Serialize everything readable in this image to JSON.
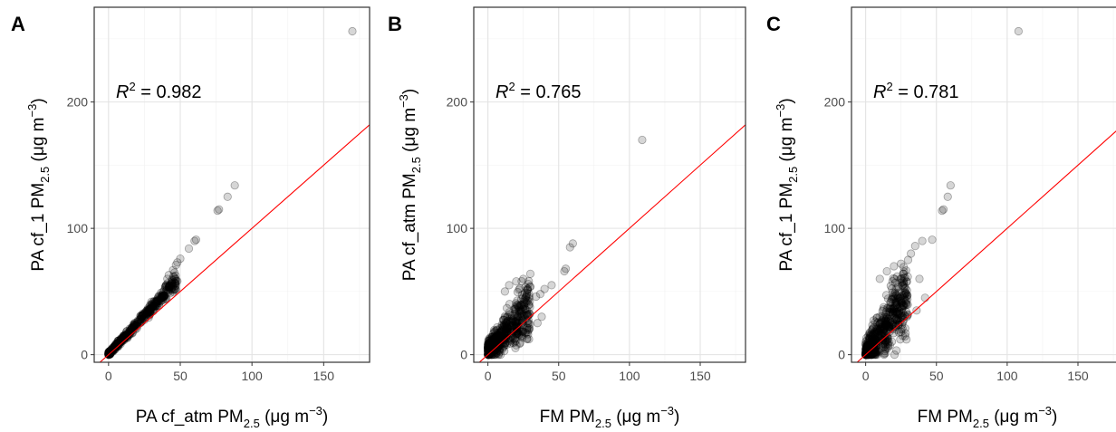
{
  "chart_data": [
    {
      "type": "scatter",
      "panel_label": "A",
      "xlabel": {
        "pre": "PA cf_atm PM",
        "sub": "2.5",
        "post": " (μg m",
        "sup": "−3",
        "end": ")"
      },
      "ylabel": {
        "pre": "PA cf_1 PM",
        "sub": "2.5",
        "post": " (μg m",
        "sup": "−3",
        "end": ")"
      },
      "annotation": {
        "base": "R",
        "sup": "2",
        "value": " = 0.982"
      },
      "xlim": [
        -10,
        182
      ],
      "ylim": [
        -6,
        275
      ],
      "x_ticks": [
        0,
        50,
        100,
        150
      ],
      "y_ticks": [
        0,
        100,
        200
      ],
      "x_tick_labels": [
        "0",
        "50",
        "100",
        "150"
      ],
      "y_tick_labels": [
        "0",
        "100",
        "200"
      ],
      "reference_line": {
        "slope": 1,
        "intercept": 0,
        "color": "#ff0000"
      },
      "cloud": {
        "xmin": 0,
        "xmax": 48,
        "slope": 1.22,
        "intercept": 0.5,
        "spread": 2.2,
        "n": 460
      },
      "outliers": [
        [
          170,
          256
        ],
        [
          88,
          134
        ],
        [
          83,
          125
        ],
        [
          77,
          115
        ],
        [
          76,
          114
        ],
        [
          61,
          91
        ],
        [
          60,
          90
        ],
        [
          56,
          84
        ],
        [
          50,
          76
        ],
        [
          48,
          73
        ],
        [
          47,
          71
        ],
        [
          45,
          67
        ],
        [
          46,
          65
        ],
        [
          42,
          63
        ],
        [
          41,
          60
        ]
      ]
    },
    {
      "type": "scatter",
      "panel_label": "B",
      "xlabel": {
        "pre": "FM PM",
        "sub": "2.5",
        "post": " (μg m",
        "sup": "−3",
        "end": ")"
      },
      "ylabel": {
        "pre": "PA cf_atm PM",
        "sub": "2.5",
        "post": " (μg m",
        "sup": "−3",
        "end": ")"
      },
      "annotation": {
        "base": "R",
        "sup": "2",
        "value": " = 0.765"
      },
      "xlim": [
        -10,
        182
      ],
      "ylim": [
        -6,
        275
      ],
      "x_ticks": [
        0,
        50,
        100,
        150
      ],
      "y_ticks": [
        0,
        100,
        200
      ],
      "x_tick_labels": [
        "0",
        "50",
        "100",
        "150"
      ],
      "y_tick_labels": [
        "0",
        "100",
        "200"
      ],
      "reference_line": {
        "slope": 1,
        "intercept": 0,
        "color": "#ff0000"
      },
      "cloud": {
        "xmin": 0,
        "xmax": 30,
        "slope": 1.15,
        "intercept": 3,
        "spread": 9,
        "n": 560
      },
      "outliers": [
        [
          109,
          170
        ],
        [
          60,
          88
        ],
        [
          58,
          85
        ],
        [
          55,
          68
        ],
        [
          54,
          66
        ],
        [
          45,
          55
        ],
        [
          40,
          52
        ],
        [
          37,
          48
        ],
        [
          34,
          46
        ],
        [
          30,
          64
        ],
        [
          25,
          60
        ],
        [
          20,
          58
        ],
        [
          15,
          55
        ],
        [
          38,
          30
        ],
        [
          35,
          25
        ],
        [
          12,
          50
        ],
        [
          28,
          52
        ]
      ]
    },
    {
      "type": "scatter",
      "panel_label": "C",
      "xlabel": {
        "pre": "FM PM",
        "sub": "2.5",
        "post": " (μg m",
        "sup": "−3",
        "end": ")"
      },
      "ylabel": {
        "pre": "PA cf_1 PM",
        "sub": "2.5",
        "post": " (μg m",
        "sup": "−3",
        "end": ")"
      },
      "annotation": {
        "base": "R",
        "sup": "2",
        "value": " = 0.781"
      },
      "xlim": [
        -10,
        182
      ],
      "ylim": [
        -6,
        275
      ],
      "x_ticks": [
        0,
        50,
        100,
        150
      ],
      "y_ticks": [
        0,
        100,
        200
      ],
      "x_tick_labels": [
        "0",
        "50",
        "100",
        "150"
      ],
      "y_tick_labels": [
        "0",
        "100",
        "200"
      ],
      "reference_line": {
        "slope": 1,
        "intercept": 0,
        "color": "#ff0000"
      },
      "cloud": {
        "xmin": 0,
        "xmax": 30,
        "slope": 1.45,
        "intercept": 2,
        "spread": 12,
        "n": 560
      },
      "outliers": [
        [
          108,
          256
        ],
        [
          60,
          134
        ],
        [
          58,
          125
        ],
        [
          55,
          115
        ],
        [
          54,
          114
        ],
        [
          47,
          91
        ],
        [
          40,
          90
        ],
        [
          35,
          86
        ],
        [
          32,
          80
        ],
        [
          30,
          75
        ],
        [
          25,
          72
        ],
        [
          20,
          70
        ],
        [
          38,
          60
        ],
        [
          42,
          45
        ],
        [
          36,
          35
        ],
        [
          15,
          66
        ],
        [
          10,
          60
        ]
      ]
    }
  ]
}
